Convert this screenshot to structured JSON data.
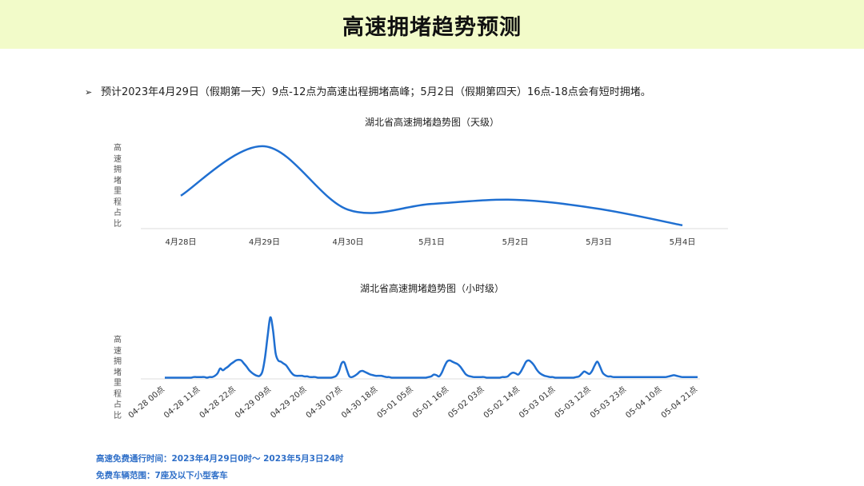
{
  "header": {
    "title": "高速拥堵趋势预测"
  },
  "bullet": {
    "marker": "➢",
    "text": "预计2023年4月29日（假期第一天）9点-12点为高速出程拥堵高峰；5月2日（假期第四天）16点-18点会有短时拥堵。"
  },
  "colors": {
    "header_bg": "#f2fbc9",
    "line": "#1f6fd1",
    "footnote": "#2f6fc8",
    "axis": "#dddddd"
  },
  "chart_data": [
    {
      "type": "line",
      "title": "湖北省高速拥堵趋势图（天级）",
      "ylabel": "高速拥堵里程占比",
      "xlabel": "",
      "categories": [
        "4月28日",
        "4月29日",
        "4月30日",
        "5月1日",
        "5月2日",
        "5月3日",
        "5月4日"
      ],
      "values": [
        0.4,
        1.0,
        0.23,
        0.3,
        0.35,
        0.24,
        0.04
      ],
      "ylim": [
        0,
        1.1
      ],
      "grid": false,
      "smooth": true
    },
    {
      "type": "line",
      "title": "湖北省高速拥堵趋势图（小时级）",
      "ylabel": "高速拥堵里程占比",
      "xlabel": "",
      "tick_labels": [
        "04-28 00点",
        "04-28 11点",
        "04-28 22点",
        "04-29 09点",
        "04-29 20点",
        "04-30 07点",
        "04-30 18点",
        "05-01 05点",
        "05-01 16点",
        "05-02 03点",
        "05-02 14点",
        "05-03 01点",
        "05-03 12点",
        "05-03 23点",
        "05-04 10点",
        "05-04 21点"
      ],
      "values": [
        0.02,
        0.02,
        0.02,
        0.02,
        0.02,
        0.02,
        0.02,
        0.02,
        0.02,
        0.02,
        0.02,
        0.03,
        0.03,
        0.03,
        0.03,
        0.03,
        0.02,
        0.03,
        0.03,
        0.05,
        0.09,
        0.17,
        0.14,
        0.17,
        0.2,
        0.24,
        0.27,
        0.3,
        0.31,
        0.3,
        0.25,
        0.2,
        0.14,
        0.1,
        0.07,
        0.05,
        0.05,
        0.12,
        0.35,
        0.7,
        1.0,
        0.8,
        0.42,
        0.3,
        0.28,
        0.25,
        0.22,
        0.16,
        0.1,
        0.06,
        0.05,
        0.05,
        0.05,
        0.04,
        0.04,
        0.03,
        0.03,
        0.03,
        0.02,
        0.02,
        0.02,
        0.02,
        0.02,
        0.02,
        0.03,
        0.05,
        0.12,
        0.25,
        0.27,
        0.15,
        0.04,
        0.03,
        0.05,
        0.08,
        0.12,
        0.13,
        0.11,
        0.09,
        0.07,
        0.06,
        0.05,
        0.05,
        0.05,
        0.04,
        0.03,
        0.03,
        0.02,
        0.02,
        0.02,
        0.02,
        0.02,
        0.02,
        0.02,
        0.02,
        0.02,
        0.02,
        0.02,
        0.02,
        0.02,
        0.02,
        0.03,
        0.04,
        0.07,
        0.06,
        0.04,
        0.1,
        0.2,
        0.28,
        0.3,
        0.28,
        0.26,
        0.24,
        0.2,
        0.14,
        0.08,
        0.05,
        0.04,
        0.03,
        0.03,
        0.03,
        0.03,
        0.03,
        0.02,
        0.02,
        0.02,
        0.02,
        0.02,
        0.02,
        0.03,
        0.03,
        0.04,
        0.08,
        0.1,
        0.09,
        0.07,
        0.12,
        0.2,
        0.28,
        0.3,
        0.27,
        0.22,
        0.15,
        0.1,
        0.07,
        0.05,
        0.04,
        0.03,
        0.03,
        0.02,
        0.02,
        0.02,
        0.02,
        0.02,
        0.02,
        0.02,
        0.02,
        0.03,
        0.04,
        0.08,
        0.12,
        0.1,
        0.08,
        0.13,
        0.22,
        0.28,
        0.2,
        0.1,
        0.06,
        0.04,
        0.04,
        0.03,
        0.03,
        0.03,
        0.03,
        0.03,
        0.03,
        0.03,
        0.03,
        0.03,
        0.03,
        0.03,
        0.03,
        0.03,
        0.03,
        0.03,
        0.03,
        0.03,
        0.03,
        0.03,
        0.03,
        0.03,
        0.04,
        0.05,
        0.06,
        0.05,
        0.04,
        0.03,
        0.03,
        0.03,
        0.03,
        0.03,
        0.03,
        0.03
      ],
      "ylim": [
        0,
        1.05
      ],
      "grid": false
    }
  ],
  "footer": {
    "line1": "高速免费通行时间：2023年4月29日0时～ 2023年5月3日24时",
    "line2": "免费车辆范围：7座及以下小型客车"
  }
}
